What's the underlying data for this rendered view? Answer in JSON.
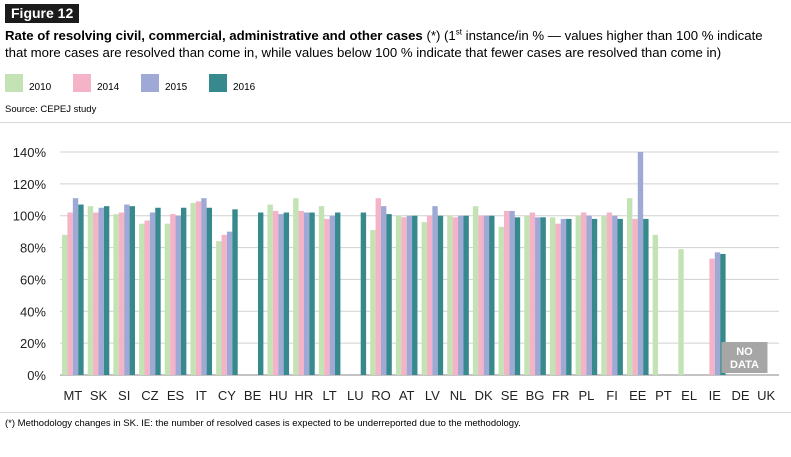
{
  "figure": {
    "label": "Figure 12",
    "title_bold": "Rate of resolving civil, commercial, administrative and other cases",
    "title_marker": "(*)",
    "subtitle_pre": "(1",
    "subtitle_sup": "st",
    "subtitle_post": " instance/in % — values higher than 100 % indicate that more cases are resolved than come in, while values below 100 % indicate that fewer cases are resolved than come in)",
    "source": "Source: CEPEJ study",
    "footnote": "(*) Methodology changes in SK. IE: the number of resolved cases is expected to be underreported due to the methodology."
  },
  "legend": [
    {
      "label": "2010",
      "color": "#c3e3b5"
    },
    {
      "label": "2014",
      "color": "#f4b3c6"
    },
    {
      "label": "2015",
      "color": "#9ea9d6"
    },
    {
      "label": "2016",
      "color": "#36898c"
    }
  ],
  "chart_data": {
    "type": "bar",
    "categories": [
      "MT",
      "SK",
      "SI",
      "CZ",
      "ES",
      "IT",
      "CY",
      "BE",
      "HU",
      "HR",
      "LT",
      "LU",
      "RO",
      "AT",
      "LV",
      "NL",
      "DK",
      "SE",
      "BG",
      "FR",
      "PL",
      "FI",
      "EE",
      "PT",
      "EL",
      "IE",
      "DE",
      "UK"
    ],
    "series": [
      {
        "name": "2010",
        "color": "#c3e3b5",
        "values": [
          88,
          106,
          101,
          95,
          95,
          108,
          84,
          null,
          107,
          111,
          106,
          null,
          91,
          100,
          96,
          100,
          106,
          93,
          100,
          99,
          100,
          100,
          111,
          88,
          79,
          null,
          null,
          null
        ]
      },
      {
        "name": "2014",
        "color": "#f4b3c6",
        "values": [
          102,
          102,
          102,
          97,
          101,
          109,
          88,
          null,
          103,
          103,
          98,
          null,
          111,
          99,
          100,
          99,
          100,
          103,
          102,
          95,
          102,
          102,
          98,
          null,
          null,
          73,
          null,
          null
        ]
      },
      {
        "name": "2015",
        "color": "#9ea9d6",
        "values": [
          111,
          105,
          107,
          102,
          100,
          111,
          90,
          null,
          101,
          102,
          100,
          null,
          106,
          100,
          106,
          100,
          100,
          103,
          99,
          98,
          100,
          100,
          140,
          null,
          null,
          77,
          null,
          null
        ]
      },
      {
        "name": "2016",
        "color": "#36898c",
        "values": [
          107,
          106,
          106,
          105,
          105,
          105,
          104,
          102,
          102,
          102,
          102,
          102,
          101,
          100,
          100,
          100,
          100,
          99,
          99,
          98,
          98,
          98,
          98,
          null,
          null,
          76,
          null,
          null
        ]
      }
    ],
    "ylim": [
      0,
      140
    ],
    "yticks": [
      "0%",
      "20%",
      "40%",
      "60%",
      "80%",
      "100%",
      "120%",
      "140%"
    ],
    "ytick_values": [
      0,
      20,
      40,
      60,
      80,
      100,
      120,
      140
    ],
    "grid": true,
    "legend_position": "top-left",
    "annotations": [
      {
        "category": "DE",
        "text_line1": "NO",
        "text_line2": "DATA"
      }
    ]
  }
}
